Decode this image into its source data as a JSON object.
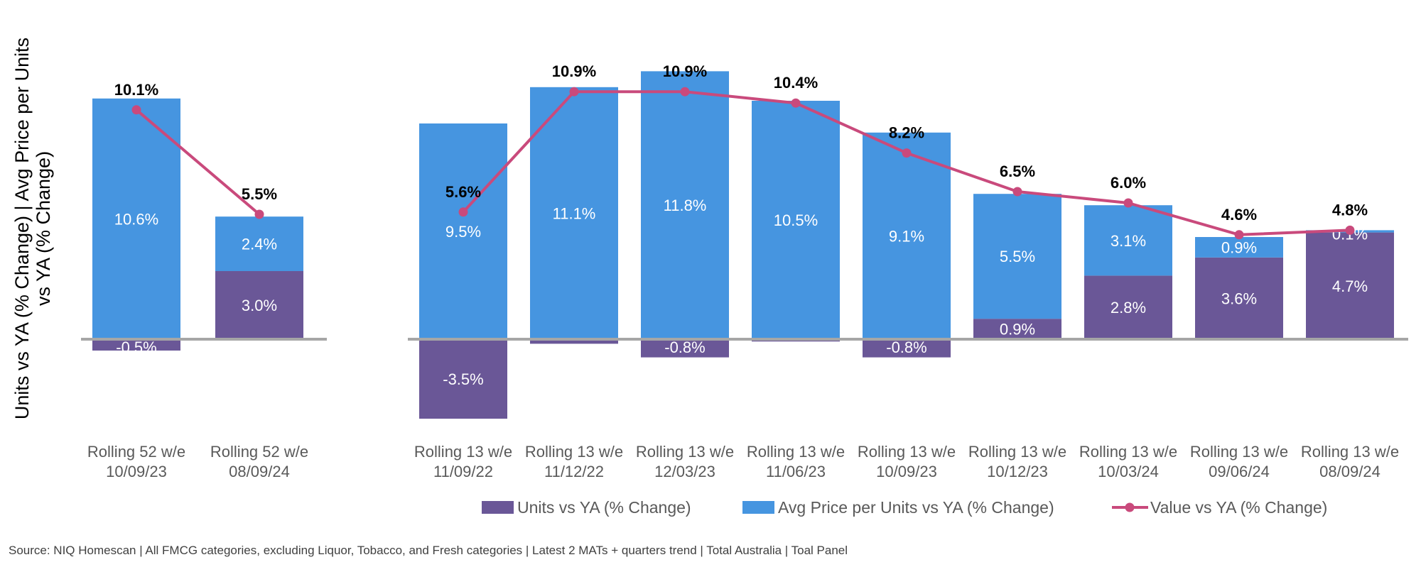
{
  "chart_data": {
    "type": "bar",
    "ylabel_line1": "Units vs YA (% Change) | Avg Price per Units",
    "ylabel_line2": "vs YA (% Change)",
    "categories": [
      [
        "Rolling 52 w/e",
        "10/09/23"
      ],
      [
        "Rolling 52 w/e",
        "08/09/24"
      ],
      [
        "Rolling 13 w/e",
        "11/09/22"
      ],
      [
        "Rolling 13 w/e",
        "11/12/22"
      ],
      [
        "Rolling 13 w/e",
        "12/03/23"
      ],
      [
        "Rolling 13 w/e",
        "11/06/23"
      ],
      [
        "Rolling 13 w/e",
        "10/09/23"
      ],
      [
        "Rolling 13 w/e",
        "10/12/23"
      ],
      [
        "Rolling 13 w/e",
        "10/03/24"
      ],
      [
        "Rolling 13 w/e",
        "09/06/24"
      ],
      [
        "Rolling 13 w/e",
        "08/09/24"
      ]
    ],
    "panels": [
      [
        0,
        1
      ],
      [
        2,
        3,
        4,
        5,
        6,
        7,
        8,
        9,
        10
      ]
    ],
    "series": [
      {
        "name": "Units vs YA (% Change)",
        "kind": "bar",
        "color": "#6a5797",
        "values": [
          -0.5,
          3.0,
          -3.5,
          -0.2,
          -0.8,
          -0.1,
          -0.8,
          0.9,
          2.8,
          3.6,
          4.7
        ],
        "labels": [
          "-0.5%",
          "3.0%",
          "-3.5%",
          "",
          "-0.8%",
          "",
          "-0.8%",
          "0.9%",
          "2.8%",
          "3.6%",
          "4.7%"
        ]
      },
      {
        "name": "Avg Price per Units vs YA (% Change)",
        "kind": "bar",
        "color": "#4695e0",
        "values": [
          10.6,
          2.4,
          9.5,
          11.1,
          11.8,
          10.5,
          9.1,
          5.5,
          3.1,
          0.9,
          0.1
        ],
        "labels": [
          "10.6%",
          "2.4%",
          "9.5%",
          "11.1%",
          "11.8%",
          "10.5%",
          "9.1%",
          "5.5%",
          "3.1%",
          "0.9%",
          "0.1%"
        ]
      },
      {
        "name": "Value vs YA (% Change)",
        "kind": "line",
        "color": "#c94a7c",
        "values": [
          10.1,
          5.5,
          5.6,
          10.9,
          10.9,
          10.4,
          8.2,
          6.5,
          6.0,
          4.6,
          4.8
        ],
        "labels": [
          "10.1%",
          "5.5%",
          "5.6%",
          "10.9%",
          "10.9%",
          "10.4%",
          "8.2%",
          "6.5%",
          "6.0%",
          "4.6%",
          "4.8%"
        ]
      }
    ],
    "ylim": [
      -4.5,
      12.5
    ],
    "gridlines": false,
    "legend_position": "bottom",
    "axis_color": "#a6a6a6"
  },
  "footer": {
    "source": "Source: NIQ Homescan | All FMCG categories, excluding Liquor, Tobacco, and Fresh categories | Latest 2 MATs + quarters trend | Total Australia | Toal Panel"
  }
}
